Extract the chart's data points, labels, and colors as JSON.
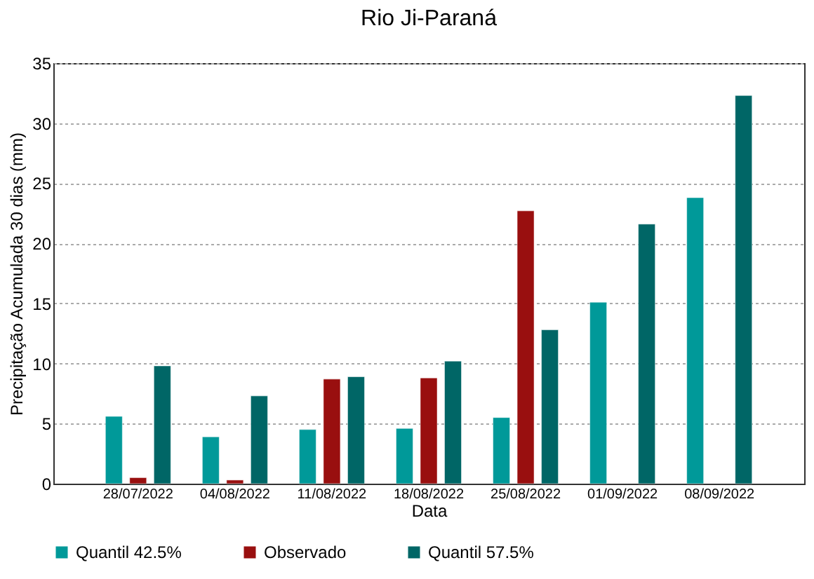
{
  "chart_data": {
    "type": "bar",
    "title": "Rio Ji-Paraná",
    "xlabel": "Data",
    "ylabel": "Precipitação Acumulada 30 dias (mm)",
    "categories": [
      "28/07/2022",
      "04/08/2022",
      "11/08/2022",
      "18/08/2022",
      "25/08/2022",
      "01/09/2022",
      "08/09/2022"
    ],
    "series": [
      {
        "name": "Quantil 42.5%",
        "color": "#009999",
        "values": [
          5.6,
          3.9,
          4.5,
          4.6,
          5.5,
          15.1,
          23.8
        ]
      },
      {
        "name": "Observado",
        "color": "#990f0f",
        "values": [
          0.5,
          0.3,
          8.7,
          8.8,
          22.7,
          null,
          null
        ]
      },
      {
        "name": "Quantil 57.5%",
        "color": "#006666",
        "values": [
          9.8,
          7.3,
          8.9,
          10.2,
          12.8,
          21.6,
          32.3
        ]
      }
    ],
    "ylim": [
      0,
      35
    ],
    "yticks": [
      0,
      5,
      10,
      15,
      20,
      25,
      30,
      35
    ],
    "grid": "y",
    "legend": "bottom"
  }
}
